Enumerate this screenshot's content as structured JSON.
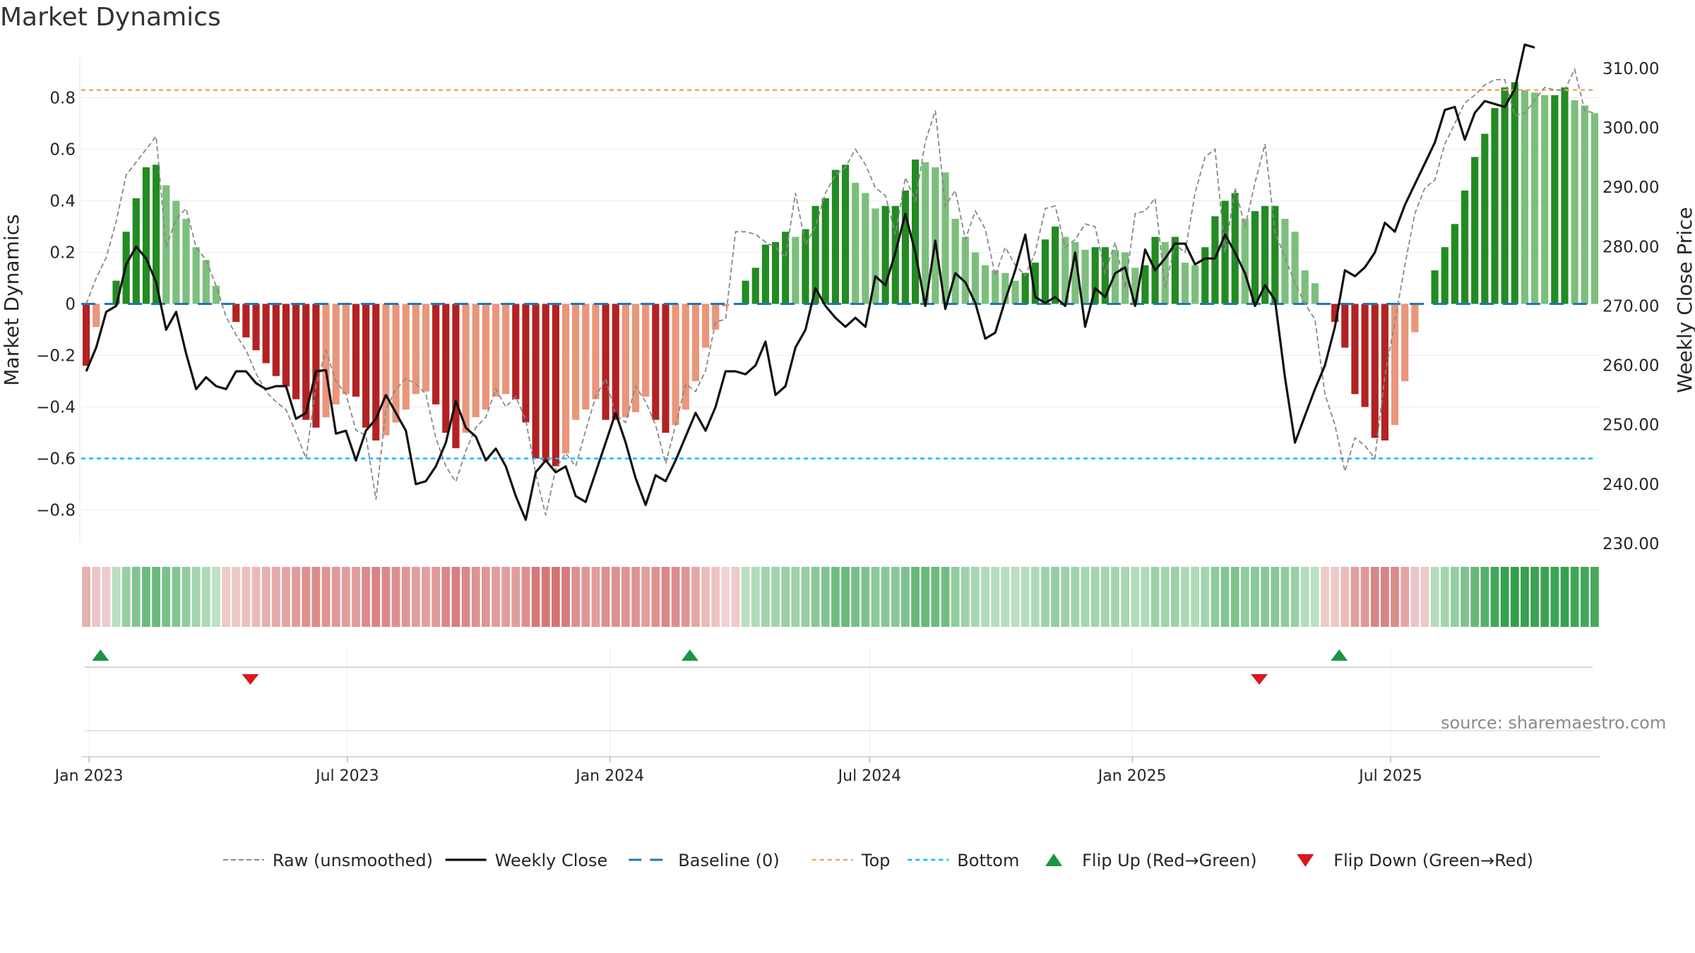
{
  "title": "Market Dynamics",
  "source_text": "source: sharemaestro.com",
  "colors": {
    "strong_green": "#228B22",
    "light_green": "#7CBF7C",
    "strong_red": "#B22222",
    "light_red": "#E9967A",
    "raw_line": "#888888",
    "close_line": "#111111",
    "baseline": "#1f77b4",
    "top_line": "#F4A460",
    "bottom_line": "#00BFFF",
    "flip_up": "#1a9641",
    "flip_down": "#d7191c"
  },
  "chart_data": {
    "type": "bar",
    "title": "Market Dynamics",
    "start_date": "2022-12-30",
    "xtick_labels": [
      "Jan 2023",
      "Jul 2023",
      "Jan 2024",
      "Jul 2024",
      "Jan 2025",
      "Jul 2025"
    ],
    "xtick_dates": [
      "2023-01-01",
      "2023-07-01",
      "2024-01-01",
      "2024-07-01",
      "2025-01-01",
      "2025-07-01"
    ],
    "ylabel_left": "Market Dynamics",
    "ylabel_right": "Weekly Close Price",
    "ylim_left": [
      -0.93,
      0.96
    ],
    "ylim_right": [
      230,
      312
    ],
    "yticks_left": [
      "0.8",
      "0.6",
      "0.4",
      "0.2",
      "0",
      "−0.2",
      "−0.4",
      "−0.6",
      "−0.8"
    ],
    "yticks_left_values": [
      0.8,
      0.6,
      0.4,
      0.2,
      0,
      -0.2,
      -0.4,
      -0.6,
      -0.8
    ],
    "yticks_right": [
      "310.00",
      "300.00",
      "290.00",
      "280.00",
      "270.00",
      "260.00",
      "250.00",
      "240.00",
      "230.00"
    ],
    "yticks_right_values": [
      310,
      300,
      290,
      280,
      270,
      260,
      250,
      240,
      230
    ],
    "top_threshold": 0.83,
    "bottom_threshold": -0.6,
    "dynamics": [
      -0.24,
      -0.09,
      0.0,
      0.09,
      0.28,
      0.41,
      0.53,
      0.54,
      0.46,
      0.4,
      0.33,
      0.22,
      0.17,
      0.07,
      0.0,
      -0.07,
      -0.13,
      -0.18,
      -0.23,
      -0.28,
      -0.32,
      -0.37,
      -0.45,
      -0.48,
      -0.44,
      -0.39,
      -0.35,
      -0.36,
      -0.48,
      -0.53,
      -0.51,
      -0.46,
      -0.41,
      -0.35,
      -0.34,
      -0.39,
      -0.5,
      -0.56,
      -0.5,
      -0.44,
      -0.41,
      -0.36,
      -0.35,
      -0.37,
      -0.46,
      -0.6,
      -0.61,
      -0.63,
      -0.58,
      -0.45,
      -0.41,
      -0.37,
      -0.45,
      -0.45,
      -0.44,
      -0.42,
      -0.36,
      -0.45,
      -0.5,
      -0.47,
      -0.41,
      -0.3,
      -0.17,
      -0.1,
      -0.01,
      0.0,
      0.09,
      0.14,
      0.23,
      0.24,
      0.28,
      0.26,
      0.29,
      0.38,
      0.41,
      0.52,
      0.54,
      0.47,
      0.43,
      0.37,
      0.38,
      0.38,
      0.44,
      0.56,
      0.55,
      0.53,
      0.51,
      0.33,
      0.26,
      0.2,
      0.15,
      0.13,
      0.12,
      0.09,
      0.12,
      0.16,
      0.25,
      0.3,
      0.26,
      0.24,
      0.21,
      0.22,
      0.22,
      0.21,
      0.2,
      0.14,
      0.15,
      0.26,
      0.24,
      0.26,
      0.16,
      0.15,
      0.22,
      0.34,
      0.4,
      0.43,
      0.33,
      0.36,
      0.38,
      0.38,
      0.33,
      0.28,
      0.13,
      0.08,
      0.0,
      -0.07,
      -0.17,
      -0.35,
      -0.4,
      -0.52,
      -0.53,
      -0.47,
      -0.3,
      -0.11,
      0.0,
      0.13,
      0.22,
      0.31,
      0.44,
      0.57,
      0.66,
      0.76,
      0.84,
      0.86,
      0.83,
      0.82,
      0.81,
      0.81,
      0.84,
      0.79,
      0.77,
      0.74
    ],
    "raw": [
      0.0,
      0.1,
      0.18,
      0.32,
      0.5,
      0.55,
      0.6,
      0.65,
      0.22,
      0.33,
      0.37,
      0.22,
      0.17,
      0.07,
      -0.05,
      -0.12,
      -0.18,
      -0.27,
      -0.34,
      -0.38,
      -0.41,
      -0.5,
      -0.6,
      -0.32,
      -0.18,
      -0.3,
      -0.35,
      -0.49,
      -0.51,
      -0.76,
      -0.41,
      -0.33,
      -0.29,
      -0.31,
      -0.35,
      -0.52,
      -0.63,
      -0.69,
      -0.57,
      -0.48,
      -0.44,
      -0.33,
      -0.4,
      -0.36,
      -0.45,
      -0.66,
      -0.82,
      -0.64,
      -0.58,
      -0.63,
      -0.49,
      -0.36,
      -0.29,
      -0.43,
      -0.46,
      -0.32,
      -0.38,
      -0.47,
      -0.62,
      -0.47,
      -0.31,
      -0.34,
      -0.26,
      -0.07,
      -0.06,
      0.28,
      0.28,
      0.27,
      0.24,
      0.22,
      0.18,
      0.43,
      0.23,
      0.3,
      0.43,
      0.5,
      0.53,
      0.6,
      0.54,
      0.45,
      0.42,
      0.27,
      0.49,
      0.4,
      0.63,
      0.75,
      0.38,
      0.44,
      0.25,
      0.36,
      0.29,
      0.11,
      0.22,
      0.15,
      0.11,
      0.2,
      0.37,
      0.38,
      0.22,
      0.25,
      0.31,
      0.3,
      0.12,
      0.24,
      0.06,
      0.35,
      0.36,
      0.41,
      0.06,
      0.23,
      0.2,
      0.43,
      0.57,
      0.6,
      0.2,
      0.45,
      0.3,
      0.47,
      0.62,
      0.28,
      0.18,
      0.08,
      0.0,
      -0.06,
      -0.35,
      -0.47,
      -0.65,
      -0.52,
      -0.55,
      -0.6,
      -0.28,
      -0.07,
      0.15,
      0.35,
      0.45,
      0.48,
      0.62,
      0.7,
      0.78,
      0.81,
      0.85,
      0.87,
      0.87,
      0.73,
      0.74,
      0.79,
      0.84,
      0.83,
      0.83,
      0.91,
      0.75,
      0.74
    ],
    "close": [
      259.0,
      263.0,
      269.0,
      270.0,
      277.0,
      280.0,
      278.0,
      274.0,
      266.0,
      269.0,
      262.0,
      256.0,
      258.0,
      256.5,
      256.0,
      259.0,
      259.0,
      257.0,
      256.0,
      256.5,
      256.5,
      251.0,
      252.0,
      259.0,
      259.2,
      248.5,
      249.0,
      244.0,
      249.0,
      251.0,
      255.0,
      252.0,
      249.0,
      240.0,
      240.5,
      243.0,
      247.0,
      254.0,
      249.5,
      248.0,
      244.0,
      246.0,
      243.0,
      238.0,
      234.0,
      242.0,
      244.0,
      242.0,
      243.0,
      238.0,
      237.0,
      242.0,
      247.0,
      252.0,
      247.0,
      241.0,
      236.5,
      241.5,
      240.5,
      244.0,
      248.0,
      252.0,
      249.0,
      253.0,
      259.0,
      259.0,
      258.5,
      260.0,
      264.0,
      255.0,
      256.5,
      263.0,
      266.0,
      273.0,
      270.0,
      268.0,
      266.5,
      268.0,
      266.5,
      275.0,
      273.5,
      279.0,
      285.5,
      279.0,
      270.0,
      281.0,
      269.5,
      275.5,
      274.0,
      270.5,
      264.5,
      265.5,
      271.0,
      276.0,
      282.0,
      271.5,
      270.5,
      271.5,
      270.0,
      279.0,
      266.5,
      273.0,
      271.5,
      275.5,
      276.5,
      270.0,
      279.5,
      276.0,
      278.0,
      280.5,
      280.5,
      277.0,
      278.0,
      278.0,
      282.0,
      279.0,
      275.5,
      270.0,
      273.5,
      271.0,
      258.0,
      247.0,
      251.5,
      256.0,
      260.0,
      266.5,
      276.0,
      275.0,
      276.5,
      279.0,
      284.0,
      282.5,
      287.0,
      290.5,
      294.0,
      297.5,
      303.0,
      303.5,
      298.0,
      302.5,
      304.5,
      304.0,
      303.5,
      306.5,
      314.0,
      313.5
    ],
    "flip_up_dates": [
      "2023-01-09",
      "2024-02-26",
      "2025-05-26"
    ],
    "flip_down_dates": [
      "2023-04-24",
      "2025-03-31"
    ]
  },
  "legend": {
    "items": [
      {
        "label": "Raw (unsmoothed)",
        "kind": "raw-line"
      },
      {
        "label": "Weekly Close",
        "kind": "close-line"
      },
      {
        "label": "Baseline (0)",
        "kind": "baseline-line"
      },
      {
        "label": "Top",
        "kind": "top-line"
      },
      {
        "label": "Bottom",
        "kind": "bottom-line"
      },
      {
        "label": "Flip Up (Red→Green)",
        "kind": "flip-up-marker"
      },
      {
        "label": "Flip Down (Green→Red)",
        "kind": "flip-down-marker"
      }
    ]
  }
}
